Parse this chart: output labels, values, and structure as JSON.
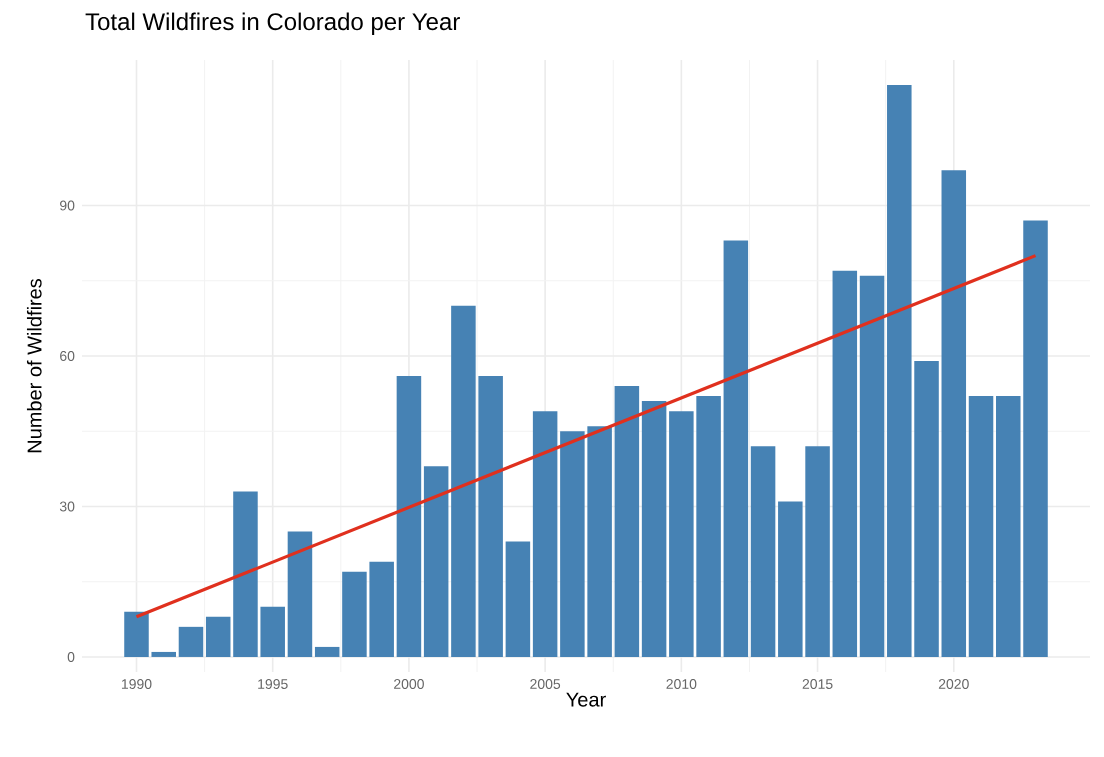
{
  "chart_data": {
    "type": "bar",
    "title": "Total Wildfires in Colorado per Year",
    "xlabel": "Year",
    "ylabel": "Number of Wildfires",
    "x": [
      1990,
      1991,
      1992,
      1993,
      1994,
      1995,
      1996,
      1997,
      1998,
      1999,
      2000,
      2001,
      2002,
      2003,
      2004,
      2005,
      2006,
      2007,
      2008,
      2009,
      2010,
      2011,
      2012,
      2013,
      2014,
      2015,
      2016,
      2017,
      2018,
      2019,
      2020,
      2021,
      2022,
      2023
    ],
    "series": [
      {
        "color": "#4682b4",
        "values": [
          9,
          1,
          6,
          8,
          33,
          10,
          25,
          2,
          17,
          19,
          56,
          38,
          70,
          56,
          23,
          49,
          45,
          46,
          54,
          51,
          49,
          52,
          83,
          42,
          31,
          42,
          77,
          76,
          114,
          59,
          97,
          52,
          52,
          87
        ]
      },
      {
        "type": "line",
        "color": "#e0301e",
        "x": [
          1990,
          2023
        ],
        "values": [
          8,
          80
        ]
      }
    ],
    "xlim": [
      1988,
      2025
    ],
    "ylim": [
      -3,
      119
    ],
    "xticks": [
      1990,
      1995,
      2000,
      2005,
      2010,
      2015,
      2020
    ],
    "yticks": [
      0,
      30,
      60,
      90
    ],
    "grid": true,
    "marker": "none"
  }
}
